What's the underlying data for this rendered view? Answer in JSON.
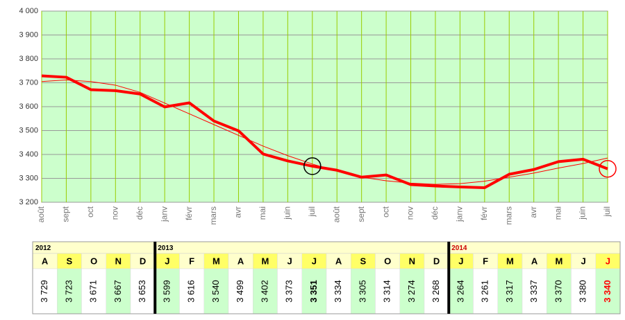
{
  "chart_data": {
    "type": "line",
    "categories": [
      "août",
      "sept",
      "oct",
      "nov",
      "déc",
      "janv",
      "févr",
      "mars",
      "avr",
      "mai",
      "juin",
      "juil",
      "août",
      "sept",
      "oct",
      "nov",
      "déc",
      "janv",
      "févr",
      "mars",
      "avr",
      "mai",
      "juin",
      "juil"
    ],
    "values": [
      3729,
      3723,
      3671,
      3667,
      3653,
      3599,
      3616,
      3540,
      3499,
      3402,
      3373,
      3351,
      3334,
      3305,
      3314,
      3274,
      3268,
      3264,
      3261,
      3317,
      3337,
      3370,
      3380,
      3340
    ],
    "value_labels": [
      "3 729",
      "3 723",
      "3 671",
      "3 667",
      "3 653",
      "3 599",
      "3 616",
      "3 540",
      "3 499",
      "3 402",
      "3 373",
      "3 351",
      "3 334",
      "3 305",
      "3 314",
      "3 274",
      "3 268",
      "3 264",
      "3 261",
      "3 317",
      "3 337",
      "3 370",
      "3 380",
      "3 340"
    ],
    "color": "#ff0000",
    "trend": {
      "color": "#ff0000",
      "values": [
        3705,
        3712,
        3705,
        3690,
        3660,
        3615,
        3570,
        3525,
        3480,
        3435,
        3395,
        3360,
        3330,
        3305,
        3290,
        3280,
        3275,
        3278,
        3288,
        3305,
        3322,
        3343,
        3362,
        3385
      ]
    },
    "circled_points": [
      {
        "index": 11,
        "color": "#000000"
      },
      {
        "index": 23,
        "color": "#ff0000"
      }
    ],
    "ylim": [
      3200,
      4000
    ],
    "yticks": [
      {
        "value": 3200,
        "label": "3 200"
      },
      {
        "value": 3300,
        "label": "3 300"
      },
      {
        "value": 3400,
        "label": "3 400"
      },
      {
        "value": 3500,
        "label": "3 500"
      },
      {
        "value": 3600,
        "label": "3 600"
      },
      {
        "value": 3700,
        "label": "3 700"
      },
      {
        "value": 3800,
        "label": "3 800"
      },
      {
        "value": 3900,
        "label": "3 900"
      },
      {
        "value": 4000,
        "label": "4 000"
      }
    ],
    "grid": true,
    "table": {
      "groups": [
        {
          "year": "2012",
          "months": [
            "A",
            "S",
            "O",
            "N",
            "D"
          ]
        },
        {
          "year": "2013",
          "months": [
            "J",
            "F",
            "M",
            "A",
            "M",
            "J",
            "J",
            "A",
            "S",
            "O",
            "N",
            "D"
          ]
        },
        {
          "year": "2014",
          "months": [
            "J",
            "F",
            "M",
            "A",
            "M",
            "J",
            "J"
          ]
        }
      ]
    }
  }
}
